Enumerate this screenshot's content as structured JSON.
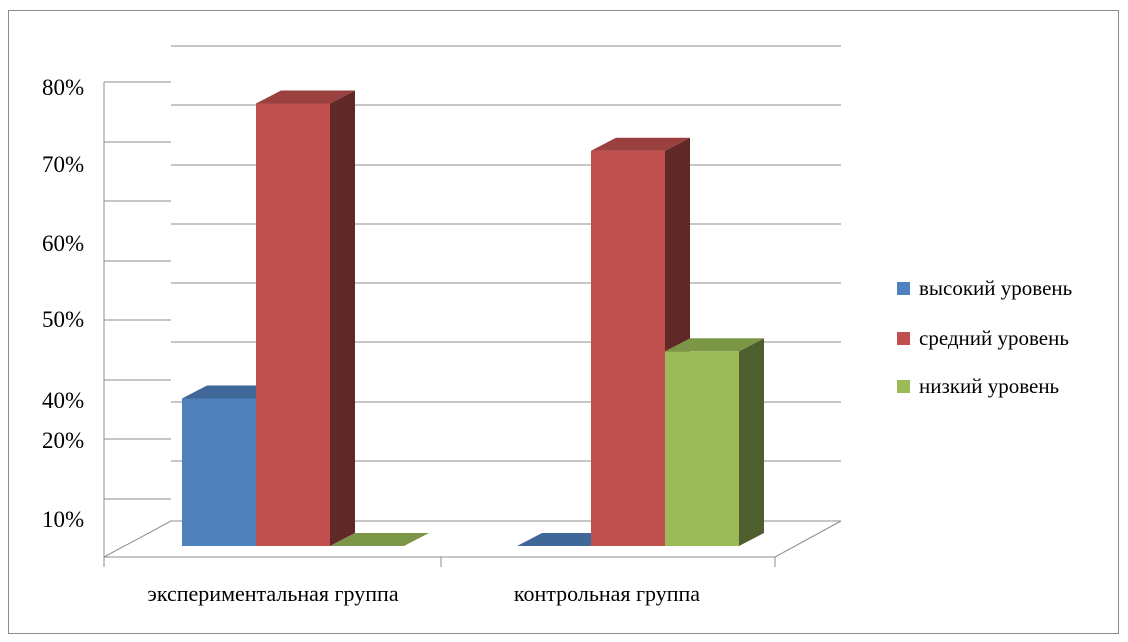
{
  "chart_data": {
    "type": "bar",
    "style": "3d-clustered-column",
    "title": "",
    "xlabel": "",
    "ylabel": "",
    "categories": [
      "экспериментальная группа",
      "контрольная группа"
    ],
    "series": [
      {
        "name": "высокий уровень",
        "values": [
          25,
          0
        ],
        "color": "#4F81BD"
      },
      {
        "name": "средний уровень",
        "values": [
          75,
          67
        ],
        "color": "#C0504D"
      },
      {
        "name": "низкий уровень",
        "values": [
          0,
          33
        ],
        "color": "#9BBB59"
      }
    ],
    "y_tick_labels": [
      "10%",
      "20%",
      "40%",
      "50%",
      "60%",
      "70%",
      "80%"
    ],
    "ylim": [
      0,
      85
    ],
    "grid": true,
    "legend_position": "right"
  }
}
